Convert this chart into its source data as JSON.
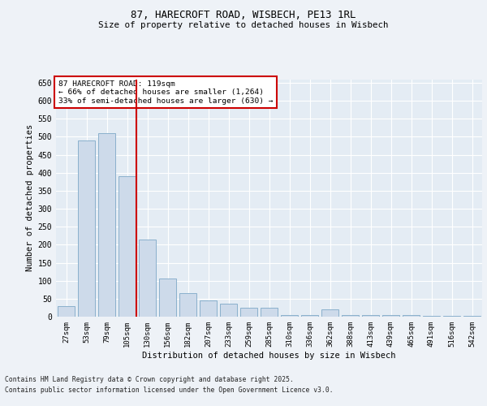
{
  "title1": "87, HARECROFT ROAD, WISBECH, PE13 1RL",
  "title2": "Size of property relative to detached houses in Wisbech",
  "xlabel": "Distribution of detached houses by size in Wisbech",
  "ylabel": "Number of detached properties",
  "categories": [
    "27sqm",
    "53sqm",
    "79sqm",
    "105sqm",
    "130sqm",
    "156sqm",
    "182sqm",
    "207sqm",
    "233sqm",
    "259sqm",
    "285sqm",
    "310sqm",
    "336sqm",
    "362sqm",
    "388sqm",
    "413sqm",
    "439sqm",
    "465sqm",
    "491sqm",
    "516sqm",
    "542sqm"
  ],
  "values": [
    30,
    490,
    510,
    390,
    215,
    105,
    65,
    45,
    35,
    25,
    25,
    5,
    5,
    20,
    5,
    5,
    5,
    5,
    2,
    2,
    2
  ],
  "bar_color": "#cddaea",
  "bar_edge_color": "#8ab0cc",
  "vline_color": "#cc0000",
  "annotation_text": "87 HARECROFT ROAD: 119sqm\n← 66% of detached houses are smaller (1,264)\n33% of semi-detached houses are larger (630) →",
  "annotation_box_color": "#ffffff",
  "annotation_box_edge": "#cc0000",
  "ylim": [
    0,
    660
  ],
  "yticks": [
    0,
    50,
    100,
    150,
    200,
    250,
    300,
    350,
    400,
    450,
    500,
    550,
    600,
    650
  ],
  "footnote1": "Contains HM Land Registry data © Crown copyright and database right 2025.",
  "footnote2": "Contains public sector information licensed under the Open Government Licence v3.0.",
  "bg_color": "#eef2f7",
  "plot_bg_color": "#e4ecf4"
}
